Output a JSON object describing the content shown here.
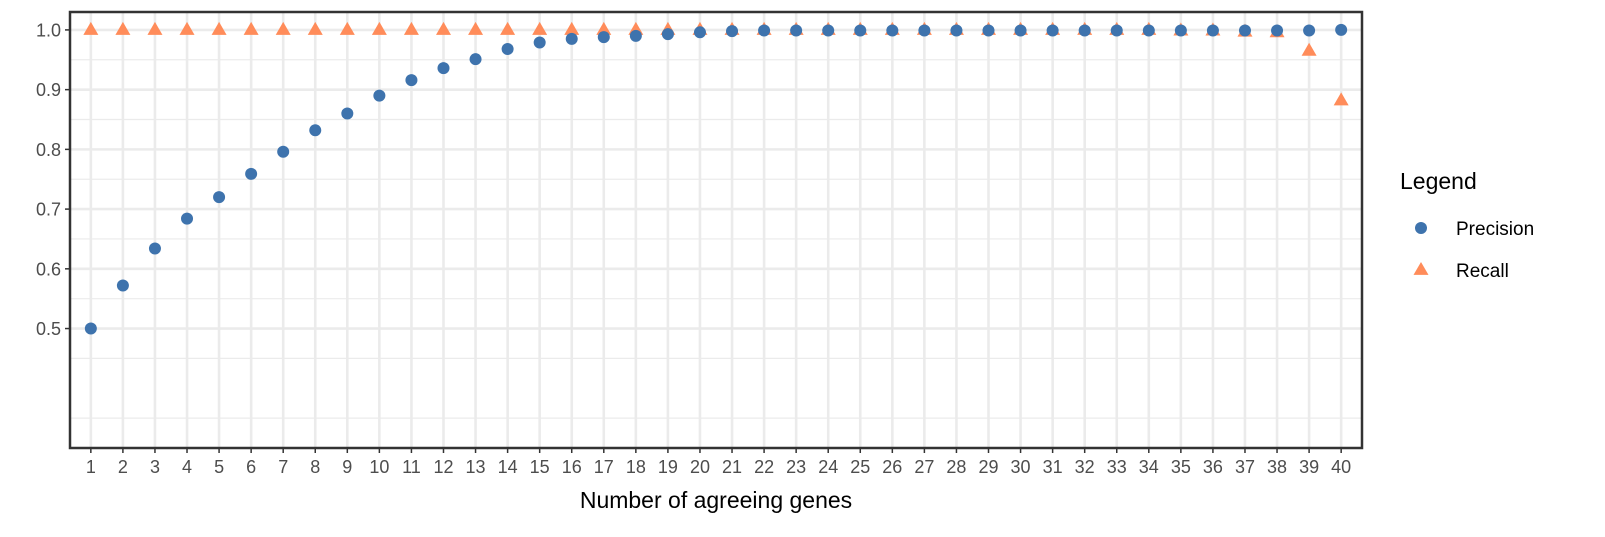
{
  "chart_data": {
    "type": "scatter",
    "title": "",
    "xlabel": "Number of agreeing genes",
    "ylabel": "",
    "x": [
      1,
      2,
      3,
      4,
      5,
      6,
      7,
      8,
      9,
      10,
      11,
      12,
      13,
      14,
      15,
      16,
      17,
      18,
      19,
      20,
      21,
      22,
      23,
      24,
      25,
      26,
      27,
      28,
      29,
      30,
      31,
      32,
      33,
      34,
      35,
      36,
      37,
      38,
      39,
      40
    ],
    "xlim": [
      0.35,
      40.65
    ],
    "ylim": [
      0.3,
      1.03
    ],
    "yticks": [
      0.5,
      0.6,
      0.7,
      0.8,
      0.9,
      1.0
    ],
    "ytick_labels": [
      "0.5",
      "0.6",
      "0.7",
      "0.8",
      "0.9",
      "1.0"
    ],
    "grid": true,
    "series": [
      {
        "name": "Precision",
        "marker": "circle",
        "color": "#3e73ad",
        "values": [
          0.5,
          0.572,
          0.634,
          0.684,
          0.72,
          0.759,
          0.796,
          0.832,
          0.86,
          0.89,
          0.916,
          0.936,
          0.951,
          0.968,
          0.979,
          0.985,
          0.988,
          0.99,
          0.993,
          0.996,
          0.998,
          0.999,
          0.999,
          0.999,
          0.999,
          0.999,
          0.999,
          0.999,
          0.999,
          0.999,
          0.999,
          0.999,
          0.999,
          0.999,
          0.999,
          0.999,
          0.999,
          0.999,
          0.999,
          1.0
        ]
      },
      {
        "name": "Recall",
        "marker": "triangle",
        "color": "#ff8c5a",
        "values": [
          1.0,
          1.0,
          1.0,
          1.0,
          1.0,
          1.0,
          1.0,
          1.0,
          1.0,
          1.0,
          1.0,
          1.0,
          1.0,
          1.0,
          1.0,
          1.0,
          1.0,
          1.0,
          1.0,
          1.0,
          1.0,
          1.0,
          1.0,
          1.0,
          1.0,
          1.0,
          1.0,
          1.0,
          1.0,
          1.0,
          1.0,
          1.0,
          1.0,
          1.0,
          0.999,
          0.999,
          0.997,
          0.996,
          0.965,
          0.882
        ]
      }
    ],
    "legend": {
      "title": "Legend",
      "position": "right"
    },
    "colors": {
      "panel_border": "#333333",
      "grid": "#ebebeb",
      "tick_text": "#4d4d4d"
    }
  }
}
